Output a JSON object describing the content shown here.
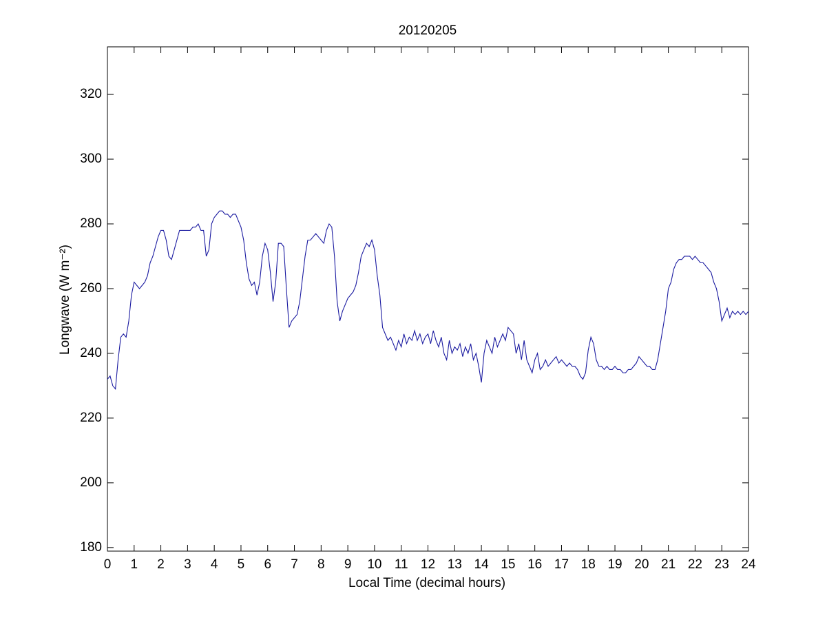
{
  "chart_data": {
    "type": "line",
    "title": "20120205",
    "xlabel": "Local Time (decimal hours)",
    "ylabel": "Longwave (W m⁻²)",
    "color": "#1a1aa0",
    "xlim": [
      0,
      24
    ],
    "ylim": [
      178.9,
      334.7
    ],
    "xticks": [
      0,
      1,
      2,
      3,
      4,
      5,
      6,
      7,
      8,
      9,
      10,
      11,
      12,
      13,
      14,
      15,
      16,
      17,
      18,
      19,
      20,
      21,
      22,
      23,
      24
    ],
    "yticks": [
      180,
      200,
      220,
      240,
      260,
      280,
      300,
      320
    ],
    "x": [
      0,
      0.1,
      0.2,
      0.3,
      0.4,
      0.5,
      0.6,
      0.7,
      0.8,
      0.9,
      1,
      1.1,
      1.2,
      1.3,
      1.4,
      1.5,
      1.6,
      1.7,
      1.8,
      1.9,
      2,
      2.1,
      2.2,
      2.3,
      2.4,
      2.5,
      2.6,
      2.7,
      2.8,
      2.9,
      3,
      3.1,
      3.2,
      3.3,
      3.4,
      3.5,
      3.6,
      3.7,
      3.8,
      3.9,
      4,
      4.1,
      4.2,
      4.3,
      4.4,
      4.5,
      4.6,
      4.7,
      4.8,
      4.9,
      5,
      5.1,
      5.2,
      5.3,
      5.4,
      5.5,
      5.6,
      5.7,
      5.8,
      5.9,
      6,
      6.1,
      6.2,
      6.3,
      6.4,
      6.5,
      6.6,
      6.7,
      6.8,
      6.9,
      7,
      7.1,
      7.2,
      7.3,
      7.4,
      7.5,
      7.6,
      7.7,
      7.8,
      7.9,
      8,
      8.1,
      8.2,
      8.3,
      8.4,
      8.5,
      8.6,
      8.7,
      8.8,
      8.9,
      9,
      9.1,
      9.2,
      9.3,
      9.4,
      9.5,
      9.6,
      9.7,
      9.8,
      9.9,
      10,
      10.1,
      10.2,
      10.3,
      10.4,
      10.5,
      10.6,
      10.7,
      10.8,
      10.9,
      11,
      11.1,
      11.2,
      11.3,
      11.4,
      11.5,
      11.6,
      11.7,
      11.8,
      11.9,
      12,
      12.1,
      12.2,
      12.3,
      12.4,
      12.5,
      12.6,
      12.7,
      12.8,
      12.9,
      13,
      13.1,
      13.2,
      13.3,
      13.4,
      13.5,
      13.6,
      13.7,
      13.8,
      13.9,
      14,
      14.1,
      14.2,
      14.3,
      14.4,
      14.5,
      14.6,
      14.7,
      14.8,
      14.9,
      15,
      15.1,
      15.2,
      15.3,
      15.4,
      15.5,
      15.6,
      15.7,
      15.8,
      15.9,
      16,
      16.1,
      16.2,
      16.3,
      16.4,
      16.5,
      16.6,
      16.7,
      16.8,
      16.9,
      17,
      17.1,
      17.2,
      17.3,
      17.4,
      17.5,
      17.6,
      17.7,
      17.8,
      17.9,
      18,
      18.1,
      18.2,
      18.3,
      18.4,
      18.5,
      18.6,
      18.7,
      18.8,
      18.9,
      19,
      19.1,
      19.2,
      19.3,
      19.4,
      19.5,
      19.6,
      19.7,
      19.8,
      19.9,
      20,
      20.1,
      20.2,
      20.3,
      20.4,
      20.5,
      20.6,
      20.7,
      20.8,
      20.9,
      21,
      21.1,
      21.2,
      21.3,
      21.4,
      21.5,
      21.6,
      21.7,
      21.8,
      21.9,
      22,
      22.1,
      22.2,
      22.3,
      22.4,
      22.5,
      22.6,
      22.7,
      22.8,
      22.9,
      23,
      23.1,
      23.2,
      23.3,
      23.4,
      23.5,
      23.6,
      23.7,
      23.8,
      23.9,
      24
    ],
    "values": [
      232,
      233,
      230,
      229,
      238,
      245,
      246,
      245,
      250,
      258,
      262,
      261,
      260,
      261,
      262,
      264,
      268,
      270,
      273,
      276,
      278,
      278,
      275,
      270,
      269,
      272,
      275,
      278,
      278,
      278,
      278,
      278,
      279,
      279,
      280,
      278,
      278,
      270,
      272,
      280,
      282,
      283,
      284,
      284,
      283,
      283,
      282,
      283,
      283,
      281,
      279,
      275,
      268,
      263,
      261,
      262,
      258,
      262,
      270,
      274,
      272,
      265,
      256,
      262,
      274,
      274,
      273,
      260,
      248,
      250,
      251,
      252,
      256,
      263,
      270,
      275,
      275,
      276,
      277,
      276,
      275,
      274,
      278,
      280,
      279,
      270,
      256,
      250,
      253,
      255,
      257,
      258,
      259,
      261,
      265,
      270,
      272,
      274,
      273,
      275,
      272,
      264,
      258,
      248,
      246,
      244,
      245,
      243,
      241,
      244,
      242,
      246,
      243,
      245,
      244,
      247,
      244,
      246,
      243,
      245,
      246,
      243,
      247,
      244,
      242,
      245,
      240,
      238,
      244,
      240,
      242,
      241,
      243,
      239,
      242,
      240,
      243,
      238,
      240,
      236,
      231,
      240,
      244,
      242,
      240,
      245,
      242,
      244,
      246,
      244,
      248,
      247,
      246,
      240,
      243,
      238,
      244,
      238,
      236,
      234,
      238,
      240,
      235,
      236,
      238,
      236,
      237,
      238,
      239,
      237,
      238,
      237,
      236,
      237,
      236,
      236,
      235,
      233,
      232,
      234,
      241,
      245,
      243,
      238,
      236,
      236,
      235,
      236,
      235,
      235,
      236,
      235,
      235,
      234,
      234,
      235,
      235,
      236,
      237,
      239,
      238,
      237,
      236,
      236,
      235,
      235,
      238,
      243,
      248,
      253,
      260,
      262,
      266,
      268,
      269,
      269,
      270,
      270,
      270,
      269,
      270,
      269,
      268,
      268,
      267,
      266,
      265,
      262,
      260,
      256,
      250,
      252,
      254,
      251,
      253,
      252,
      253,
      252,
      253,
      252,
      253
    ]
  }
}
